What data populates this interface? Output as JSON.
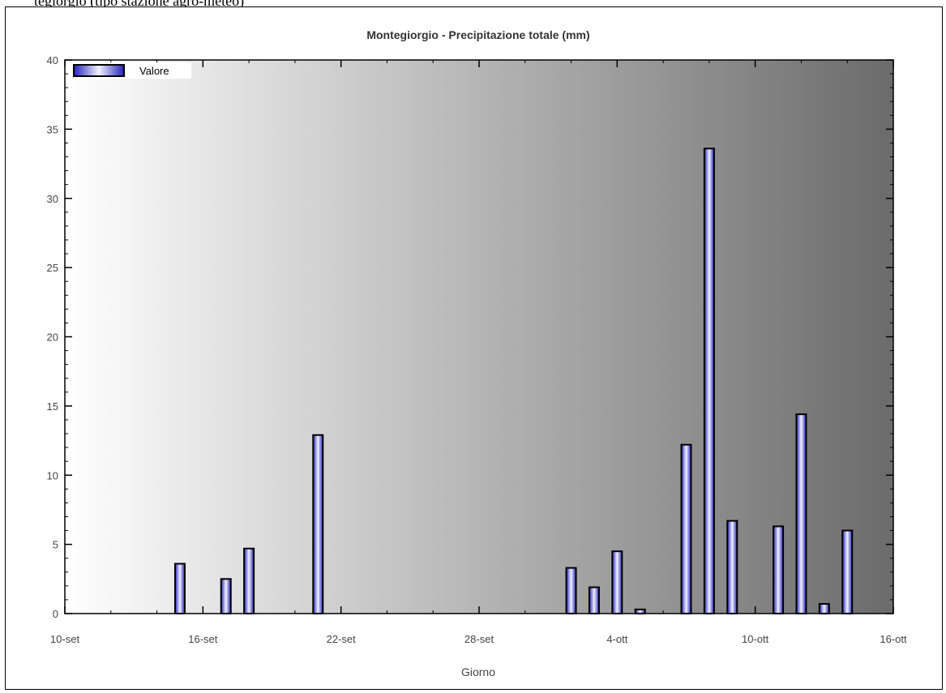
{
  "caption": "tegiorgio (tipo stazione agro-meteo)",
  "chart_data": {
    "type": "bar",
    "title": "Montegiorgio - Precipitazione totale (mm)",
    "xlabel": "Giorno",
    "ylabel": "",
    "ylim": [
      0,
      40
    ],
    "yticks": [
      0,
      5,
      10,
      15,
      20,
      25,
      30,
      35,
      40
    ],
    "xtick_labels": [
      "10-set",
      "16-set",
      "22-set",
      "28-set",
      "4-ott",
      "10-ott",
      "16-ott"
    ],
    "grid": false,
    "legend": "top-left",
    "series": [
      {
        "name": "Valore",
        "color": "#3333cc",
        "x": [
          "15-set",
          "17-set",
          "18-set",
          "21-set",
          "2-ott",
          "3-ott",
          "4-ott",
          "5-ott",
          "7-ott",
          "8-ott",
          "9-ott",
          "11-ott",
          "12-ott",
          "13-ott",
          "14-ott"
        ],
        "values": [
          3.6,
          2.5,
          4.7,
          12.9,
          3.3,
          1.9,
          4.5,
          0.3,
          12.2,
          33.6,
          6.7,
          6.3,
          14.4,
          0.7,
          6.0
        ]
      }
    ]
  }
}
